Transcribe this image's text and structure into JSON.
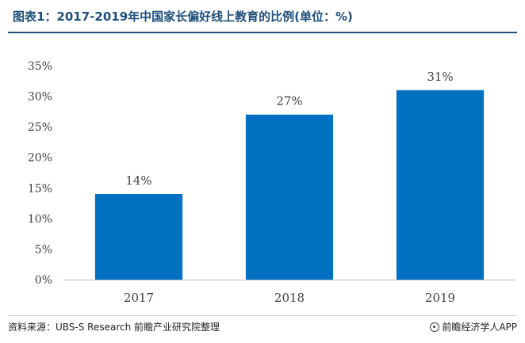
{
  "header": {
    "title": "图表1：2017-2019年中国家长偏好线上教育的比例(单位：%)"
  },
  "footer": {
    "source": "资料来源：UBS-S Research 前瞻产业研究院整理",
    "brand": "前瞻经济学人APP",
    "brand_icon": "brand-logo-icon"
  },
  "colors": {
    "bar": "#0070c0",
    "title": "#1f4e79",
    "axis": "#bfbfbf"
  },
  "chart_data": {
    "type": "bar",
    "title": "图表1：2017-2019年中国家长偏好线上教育的比例(单位：%)",
    "xlabel": "",
    "ylabel": "",
    "categories": [
      "2017",
      "2018",
      "2019"
    ],
    "values": [
      14,
      27,
      31
    ],
    "value_labels": [
      "14%",
      "27%",
      "31%"
    ],
    "ylim": [
      0,
      35
    ],
    "yticks": [
      0,
      5,
      10,
      15,
      20,
      25,
      30,
      35
    ],
    "ytick_labels": [
      "0%",
      "5%",
      "10%",
      "15%",
      "20%",
      "25%",
      "30%",
      "35%"
    ],
    "grid": false,
    "legend": "none"
  }
}
